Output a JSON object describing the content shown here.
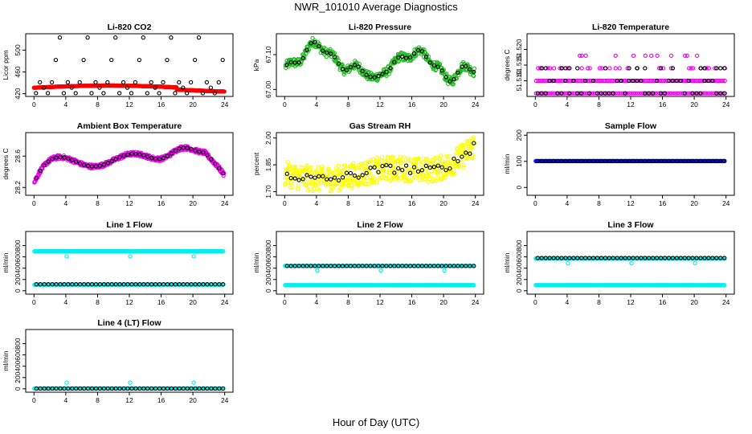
{
  "figure": {
    "title": "NWR_101010  Average Diagnostics",
    "xlabel": "Hour of Day (UTC)"
  },
  "chart_data": [
    {
      "id": "co2",
      "type": "scatter",
      "title": "Li-820 CO2",
      "ylabel": "Licor ppm",
      "xlim": [
        0,
        24
      ],
      "xticks": [
        0,
        4,
        8,
        12,
        16,
        20,
        24
      ],
      "ylim": [
        415,
        530
      ],
      "yticks": [
        420,
        460,
        500
      ],
      "ytick_labels": [
        "420",
        "460",
        "500"
      ],
      "series": [
        {
          "name": "averages",
          "color": "#ff0000",
          "generator": "co2_line"
        },
        {
          "name": "hourly",
          "color": "#000000",
          "generator": "co2_scatter"
        }
      ]
    },
    {
      "id": "pressure",
      "type": "scatter",
      "title": "Li-820 Pressure",
      "ylabel": "kPa",
      "xlim": [
        0,
        24
      ],
      "xticks": [
        0,
        4,
        8,
        12,
        16,
        20,
        24
      ],
      "ylim": [
        66.98,
        67.16
      ],
      "yticks": [
        67.0,
        67.1
      ],
      "ytick_labels": [
        "67.00",
        "67.10"
      ],
      "series": [
        {
          "name": "averages",
          "color": "#22bb22",
          "generator": "pressure_wave_spread"
        },
        {
          "name": "hourly",
          "color": "#000000",
          "generator": "pressure_wave"
        }
      ]
    },
    {
      "id": "li820temp",
      "type": "scatter",
      "title": "Li-820 Temperature",
      "ylabel": "degrees C",
      "xlim": [
        0,
        24
      ],
      "xticks": [
        0,
        4,
        8,
        12,
        16,
        20,
        24
      ],
      "ylim": [
        51.505,
        51.525
      ],
      "yticks": [
        51.51,
        51.515,
        51.52
      ],
      "ytick_labels": [
        "51.510",
        "51.515",
        "51.520"
      ],
      "series": [
        {
          "name": "averages",
          "color": "#ee00ee",
          "generator": "temp_levels"
        },
        {
          "name": "hourly",
          "color": "#000000",
          "generator": "temp_levels_sparse"
        }
      ]
    },
    {
      "id": "boxtemp",
      "type": "scatter",
      "title": "Ambient Box Temperature",
      "ylabel": "degrees C",
      "xlim": [
        0,
        24
      ],
      "xticks": [
        0,
        4,
        8,
        12,
        16,
        20,
        24
      ],
      "ylim": [
        28.1,
        28.9
      ],
      "yticks": [
        28.2,
        28.6
      ],
      "ytick_labels": [
        "28.2",
        "28.6"
      ],
      "series": [
        {
          "name": "averages",
          "color": "#ee00ee",
          "generator": "box_wave_thick"
        },
        {
          "name": "hourly",
          "color": "#000000",
          "generator": "box_wave"
        }
      ]
    },
    {
      "id": "rh",
      "type": "scatter",
      "title": "Gas Stream RH",
      "ylabel": "percent",
      "xlim": [
        0,
        24
      ],
      "xticks": [
        0,
        4,
        8,
        12,
        16,
        20,
        24
      ],
      "ylim": [
        1.68,
        2.03
      ],
      "yticks": [
        1.7,
        1.85,
        2.0
      ],
      "ytick_labels": [
        "1.70",
        "1.85",
        "2.00"
      ],
      "series": [
        {
          "name": "averages",
          "color": "#ffff00",
          "generator": "rh_spread"
        },
        {
          "name": "hourly",
          "color": "#000000",
          "generator": "rh_line"
        }
      ]
    },
    {
      "id": "sampleflow",
      "type": "scatter",
      "title": "Sample Flow",
      "ylabel": "ml/min",
      "xlim": [
        0,
        24
      ],
      "xticks": [
        0,
        4,
        8,
        12,
        16,
        20,
        24
      ],
      "ylim": [
        -30,
        210
      ],
      "yticks": [
        0,
        100,
        200
      ],
      "ytick_labels": [
        "0",
        "100",
        "200"
      ],
      "series": [
        {
          "name": "averages",
          "color": "#0000ff",
          "const": 101
        },
        {
          "name": "hourly",
          "color": "#000000",
          "const": 101
        }
      ]
    },
    {
      "id": "line1",
      "type": "scatter",
      "title": "Line 1 Flow",
      "ylabel": "ml/min",
      "xlim": [
        0,
        24
      ],
      "xticks": [
        0,
        4,
        8,
        12,
        16,
        20,
        24
      ],
      "ylim": [
        -60,
        1050
      ],
      "yticks": [
        0,
        200,
        400,
        600,
        800
      ],
      "ytick_labels": [
        "0",
        "200",
        "400",
        "600",
        "800"
      ],
      "series": [
        {
          "name": "cyan-high",
          "color": "#00eeee",
          "const": 700,
          "dips": [
            [
              4.1,
              610
            ],
            [
              12.1,
              610
            ],
            [
              20.1,
              610
            ]
          ]
        },
        {
          "name": "cyan-low",
          "color": "#00eeee",
          "const": 110
        },
        {
          "name": "hourly",
          "color": "#000000",
          "const": 115
        }
      ]
    },
    {
      "id": "line2",
      "type": "scatter",
      "title": "Line 2 Flow",
      "ylabel": "ml/min",
      "xlim": [
        0,
        24
      ],
      "xticks": [
        0,
        4,
        8,
        12,
        16,
        20,
        24
      ],
      "ylim": [
        -60,
        1050
      ],
      "yticks": [
        0,
        200,
        400,
        600,
        800
      ],
      "ytick_labels": [
        "0",
        "200",
        "400",
        "600",
        "800"
      ],
      "series": [
        {
          "name": "cyan-high",
          "color": "#00eeee",
          "const": 440,
          "dips": [
            [
              4.1,
              360
            ],
            [
              12.1,
              360
            ],
            [
              20.1,
              360
            ]
          ]
        },
        {
          "name": "cyan-low",
          "color": "#00eeee",
          "const": 100
        },
        {
          "name": "hourly",
          "color": "#000000",
          "const": 440
        }
      ]
    },
    {
      "id": "line3",
      "type": "scatter",
      "title": "Line 3 Flow",
      "ylabel": "ml/min",
      "xlim": [
        0,
        24
      ],
      "xticks": [
        0,
        4,
        8,
        12,
        16,
        20,
        24
      ],
      "ylim": [
        -60,
        1050
      ],
      "yticks": [
        0,
        200,
        400,
        600,
        800
      ],
      "ytick_labels": [
        "0",
        "200",
        "400",
        "600",
        "800"
      ],
      "series": [
        {
          "name": "cyan-high",
          "color": "#00eeee",
          "const": 570,
          "dips": [
            [
              4.1,
              490
            ],
            [
              12.1,
              490
            ],
            [
              20.1,
              490
            ]
          ]
        },
        {
          "name": "cyan-low",
          "color": "#00eeee",
          "const": 100
        },
        {
          "name": "hourly",
          "color": "#000000",
          "const": 580
        }
      ]
    },
    {
      "id": "line4",
      "type": "scatter",
      "title": "Line 4 (LT) Flow",
      "ylabel": "ml/min",
      "xlim": [
        0,
        24
      ],
      "xticks": [
        0,
        4,
        8,
        12,
        16,
        20,
        24
      ],
      "ylim": [
        -60,
        1050
      ],
      "yticks": [
        0,
        200,
        400,
        600,
        800
      ],
      "ytick_labels": [
        "0",
        "200",
        "400",
        "600",
        "800"
      ],
      "series": [
        {
          "name": "cyan-low",
          "color": "#00eeee",
          "const": 5,
          "dips": [
            [
              4.1,
              110
            ],
            [
              12.1,
              110
            ],
            [
              20.1,
              110
            ]
          ]
        },
        {
          "name": "hourly",
          "color": "#000000",
          "const": 5
        }
      ]
    }
  ]
}
